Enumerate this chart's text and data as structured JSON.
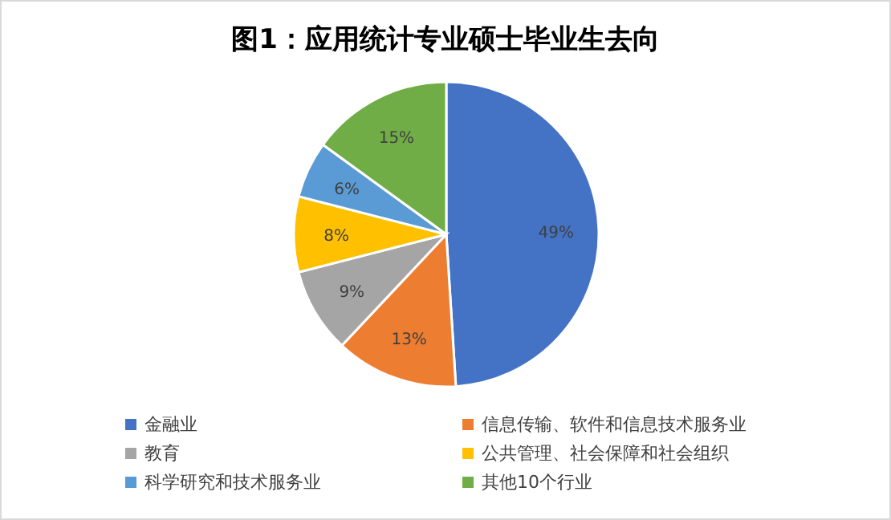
{
  "chart_data": {
    "type": "pie",
    "title": "图1：应用统计专业硕士毕业生去向",
    "categories": [
      "金融业",
      "信息传输、软件和信息技术服务业",
      "教育",
      "公共管理、社会保障和社会组织",
      "科学研究和技术服务业",
      "其他10个行业"
    ],
    "values": [
      49,
      13,
      9,
      8,
      6,
      15
    ],
    "colors": [
      "#4472c4",
      "#ed7d31",
      "#a5a5a5",
      "#ffc000",
      "#5b9bd5",
      "#70ad47"
    ],
    "value_labels": [
      "49%",
      "13%",
      "9%",
      "8%",
      "6%",
      "15%"
    ],
    "legend": "bottom"
  }
}
